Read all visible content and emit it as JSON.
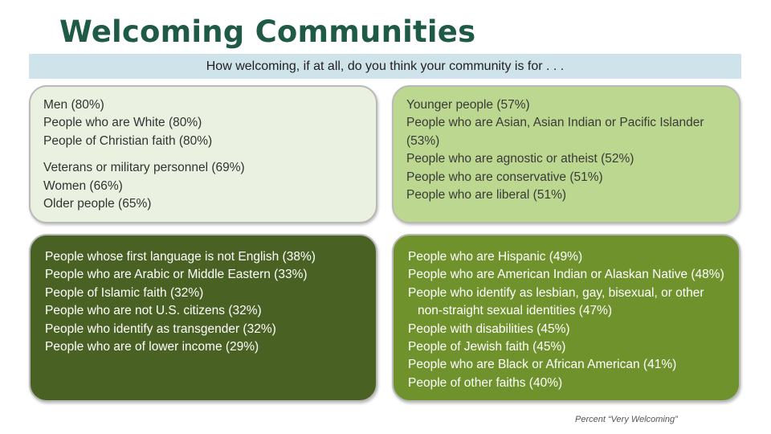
{
  "title": "Welcoming Communities",
  "subtitle": "How welcoming, if at all, do you think your community is for . . .",
  "boxes": {
    "top_left": {
      "color": "#eaf1e0",
      "items": [
        "Men (80%)",
        "People who are White (80%)",
        "People of Christian faith (80%)",
        "Veterans or military personnel (69%)",
        "Women (66%)",
        "Older people (65%)"
      ]
    },
    "top_right": {
      "color": "#bcd78f",
      "items": [
        "Younger people (57%)",
        "People who are Asian, Asian Indian or Pacific Islander (53%)",
        "People who are agnostic or atheist (52%)",
        "People who are conservative (51%)",
        "People who are liberal (51%)"
      ]
    },
    "bottom_left": {
      "color": "#4a6124",
      "items": [
        "People whose first language is not English (38%)",
        "People who are Arabic or Middle Eastern (33%)",
        "People of Islamic faith (32%)",
        "People who are not U.S. citizens (32%)",
        "People who identify as transgender (32%)",
        "People who are of lower income (29%)"
      ]
    },
    "bottom_right": {
      "color": "#6f922d",
      "items": [
        "People who are Hispanic (49%)",
        "People who are American Indian or Alaskan Native (48%)",
        "People who identify as lesbian, gay, bisexual, or other",
        "non-straight sexual identities (47%)",
        "People with disabilities (45%)",
        "People of Jewish faith (45%)",
        "People who are Black or African American (41%)",
        "People of other faiths (40%)"
      ]
    }
  },
  "footnote": "Percent “Very Welcoming”"
}
